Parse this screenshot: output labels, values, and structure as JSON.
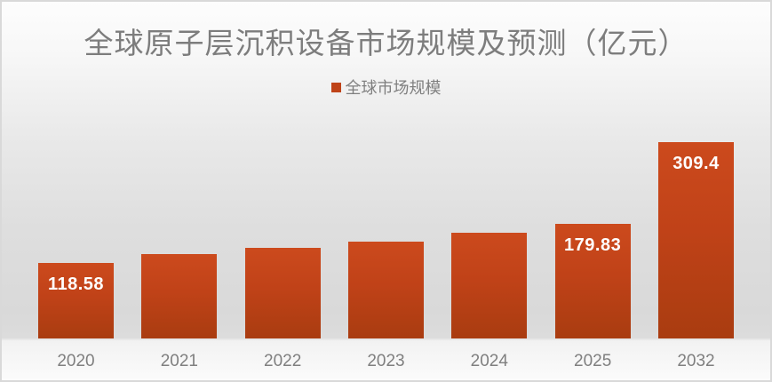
{
  "chart_data": {
    "type": "bar",
    "title": "全球原子层沉积设备市场规模及预测（亿元）",
    "series_name": "全球市场规模",
    "categories": [
      "2020",
      "2021",
      "2022",
      "2023",
      "2024",
      "2025",
      "2032"
    ],
    "values": [
      118.58,
      133.5,
      142,
      153,
      167,
      179.83,
      309.4
    ],
    "data_labels": [
      "118.58",
      "",
      "",
      "",
      "",
      "179.83",
      "309.4"
    ],
    "xlabel": "",
    "ylabel": "",
    "ylim": [
      0,
      330
    ],
    "grid": false,
    "legend_position": "top",
    "colors": {
      "bar_top": "#cc4a1d",
      "bar_bottom": "#a93c10",
      "legend_swatch": "#bf4318",
      "title_text": "#7d7d7d",
      "axis_text": "#7f7f7f",
      "value_text": "#ffffff",
      "frame_border": "#d9d9d9"
    }
  }
}
